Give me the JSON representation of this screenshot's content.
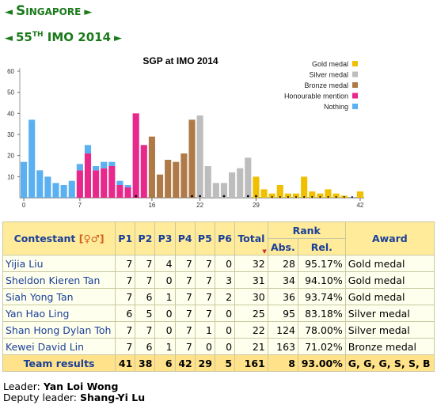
{
  "nav": {
    "prev_arrow": "◄",
    "next_arrow": "►",
    "country": "Singapore",
    "imo_number": "55",
    "imo_suffix": "TH",
    "imo_label": "IMO 2014"
  },
  "chart_data": {
    "type": "bar",
    "title": "SGP at IMO 2014",
    "xlabel": "",
    "ylabel": "",
    "ylim": [
      0,
      60
    ],
    "yticks": [
      10,
      20,
      30,
      40,
      50,
      60
    ],
    "xticks": [
      0,
      7,
      16,
      22,
      29,
      42
    ],
    "legend_position": "top-right",
    "series": [
      {
        "name": "Gold medal",
        "color": "#f0c000"
      },
      {
        "name": "Silver medal",
        "color": "#bdbdbd"
      },
      {
        "name": "Bronze medal",
        "color": "#b07a48"
      },
      {
        "name": "Honourable mention",
        "color": "#e8288a"
      },
      {
        "name": "Nothing",
        "color": "#5ab0f0"
      }
    ],
    "stacked_bars": [
      [
        {
          "s": "Nothing",
          "v": 17
        }
      ],
      [
        {
          "s": "Nothing",
          "v": 37
        }
      ],
      [
        {
          "s": "Nothing",
          "v": 13
        }
      ],
      [
        {
          "s": "Nothing",
          "v": 10
        }
      ],
      [
        {
          "s": "Nothing",
          "v": 7
        }
      ],
      [
        {
          "s": "Nothing",
          "v": 6
        }
      ],
      [
        {
          "s": "Nothing",
          "v": 8
        }
      ],
      [
        {
          "s": "Honourable mention",
          "v": 13
        },
        {
          "s": "Nothing",
          "v": 3
        }
      ],
      [
        {
          "s": "Honourable mention",
          "v": 21
        },
        {
          "s": "Nothing",
          "v": 4
        }
      ],
      [
        {
          "s": "Honourable mention",
          "v": 13
        },
        {
          "s": "Nothing",
          "v": 2
        }
      ],
      [
        {
          "s": "Honourable mention",
          "v": 14
        },
        {
          "s": "Nothing",
          "v": 3
        }
      ],
      [
        {
          "s": "Honourable mention",
          "v": 15
        },
        {
          "s": "Nothing",
          "v": 2
        }
      ],
      [
        {
          "s": "Honourable mention",
          "v": 6
        },
        {
          "s": "Nothing",
          "v": 2
        }
      ],
      [
        {
          "s": "Honourable mention",
          "v": 5
        },
        {
          "s": "Nothing",
          "v": 1
        }
      ],
      [
        {
          "s": "Honourable mention",
          "v": 40
        }
      ],
      [
        {
          "s": "Honourable mention",
          "v": 25
        }
      ],
      [
        {
          "s": "Bronze medal",
          "v": 29
        }
      ],
      [
        {
          "s": "Bronze medal",
          "v": 11
        }
      ],
      [
        {
          "s": "Bronze medal",
          "v": 18
        }
      ],
      [
        {
          "s": "Bronze medal",
          "v": 17
        }
      ],
      [
        {
          "s": "Bronze medal",
          "v": 21
        }
      ],
      [
        {
          "s": "Bronze medal",
          "v": 37
        }
      ],
      [
        {
          "s": "Silver medal",
          "v": 39
        }
      ],
      [
        {
          "s": "Silver medal",
          "v": 15
        }
      ],
      [
        {
          "s": "Silver medal",
          "v": 7
        }
      ],
      [
        {
          "s": "Silver medal",
          "v": 7
        }
      ],
      [
        {
          "s": "Silver medal",
          "v": 12
        }
      ],
      [
        {
          "s": "Silver medal",
          "v": 14
        }
      ],
      [
        {
          "s": "Silver medal",
          "v": 19
        }
      ],
      [
        {
          "s": "Gold medal",
          "v": 10
        }
      ],
      [
        {
          "s": "Gold medal",
          "v": 4
        }
      ],
      [
        {
          "s": "Gold medal",
          "v": 2
        }
      ],
      [
        {
          "s": "Gold medal",
          "v": 6
        }
      ],
      [
        {
          "s": "Gold medal",
          "v": 2
        }
      ],
      [
        {
          "s": "Gold medal",
          "v": 2
        }
      ],
      [
        {
          "s": "Gold medal",
          "v": 10
        }
      ],
      [
        {
          "s": "Gold medal",
          "v": 3
        }
      ],
      [
        {
          "s": "Gold medal",
          "v": 2
        }
      ],
      [
        {
          "s": "Gold medal",
          "v": 4
        }
      ],
      [
        {
          "s": "Gold medal",
          "v": 2
        }
      ],
      [
        {
          "s": "Gold medal",
          "v": 1
        }
      ],
      [
        {
          "s": "Gold medal",
          "v": 0
        }
      ],
      [
        {
          "s": "Gold medal",
          "v": 3
        }
      ]
    ],
    "singapore_markers": [
      14,
      21,
      22,
      25,
      28,
      29
    ],
    "zero_markers": [
      31,
      32,
      33,
      34,
      35,
      36,
      37,
      38,
      39,
      40,
      41
    ]
  },
  "table": {
    "headers": {
      "contestant": "Contestant",
      "gender_icon": "[♀♂]",
      "problems": [
        "P1",
        "P2",
        "P3",
        "P4",
        "P5",
        "P6"
      ],
      "total": "Total",
      "rank": "Rank",
      "abs": "Abs.",
      "rel": "Rel.",
      "award": "Award"
    },
    "rows": [
      {
        "name": "Yijia Liu",
        "scores": [
          "7",
          "7",
          "4",
          "7",
          "7",
          "0"
        ],
        "total": "32",
        "abs": "28",
        "rel": "95.17%",
        "award": "Gold medal"
      },
      {
        "name": "Sheldon Kieren Tan",
        "scores": [
          "7",
          "7",
          "0",
          "7",
          "7",
          "3"
        ],
        "total": "31",
        "abs": "34",
        "rel": "94.10%",
        "award": "Gold medal"
      },
      {
        "name": "Siah Yong Tan",
        "scores": [
          "7",
          "6",
          "1",
          "7",
          "7",
          "2"
        ],
        "total": "30",
        "abs": "36",
        "rel": "93.74%",
        "award": "Gold medal"
      },
      {
        "name": "Yan Hao Ling",
        "scores": [
          "6",
          "5",
          "0",
          "7",
          "7",
          "0"
        ],
        "total": "25",
        "abs": "95",
        "rel": "83.18%",
        "award": "Silver medal"
      },
      {
        "name": "Shan Hong Dylan Toh",
        "scores": [
          "7",
          "7",
          "0",
          "7",
          "1",
          "0"
        ],
        "total": "22",
        "abs": "124",
        "rel": "78.00%",
        "award": "Silver medal"
      },
      {
        "name": "Kewei David Lin",
        "scores": [
          "7",
          "6",
          "1",
          "7",
          "0",
          "0"
        ],
        "total": "21",
        "abs": "163",
        "rel": "71.02%",
        "award": "Bronze medal"
      }
    ],
    "team": {
      "label": "Team results",
      "scores": [
        "41",
        "38",
        "6",
        "42",
        "29",
        "5"
      ],
      "total": "161",
      "abs": "8",
      "rel": "93.00%",
      "award": "G, G, G, S, S, B"
    }
  },
  "footer": {
    "leader_label": "Leader:",
    "leader": "Yan Loi Wong",
    "deputy_label": "Deputy leader:",
    "deputy": "Shang-Yi Lu"
  }
}
